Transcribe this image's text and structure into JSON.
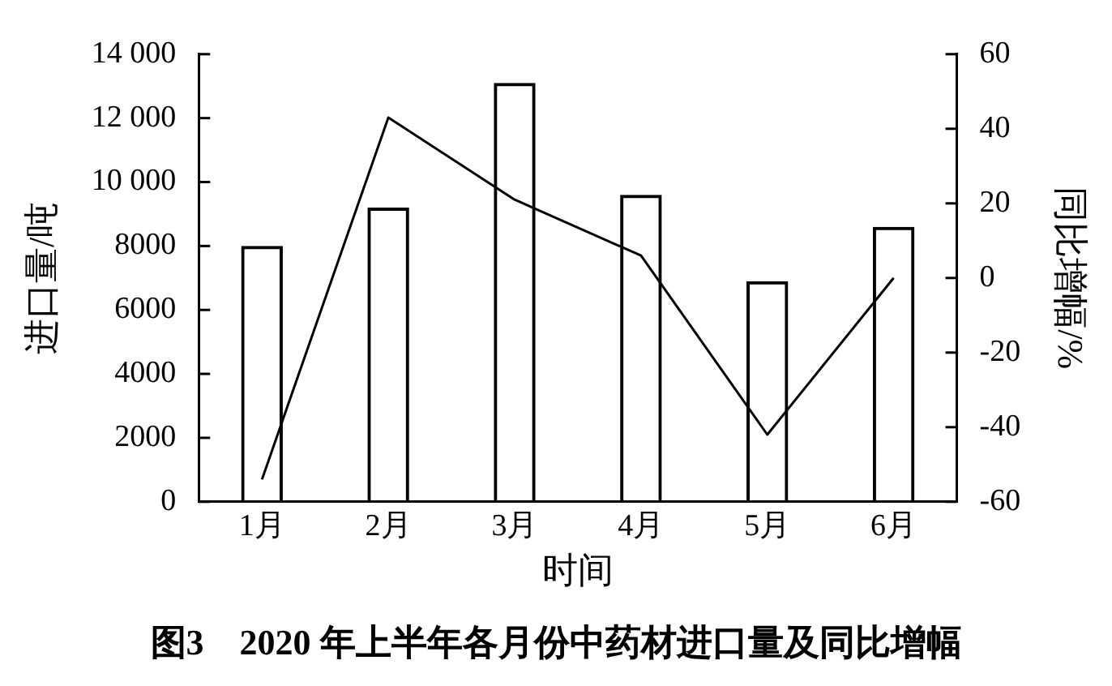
{
  "chart_data": {
    "type": "bar",
    "title": "图3　2020 年上半年各月份中药材进口量及同比增幅",
    "xlabel": "时间",
    "ylabel": "进口量/吨",
    "y2label": "同比增幅/%",
    "categories": [
      "1月",
      "2月",
      "3月",
      "4月",
      "5月",
      "6月"
    ],
    "series": [
      {
        "color": "#000000",
        "values": [
          8000,
          9200,
          13100,
          9600,
          6900,
          8600
        ]
      },
      {
        "type": "line",
        "axis": "y2",
        "color": "#000000",
        "values": [
          -54,
          43,
          21,
          6,
          -42,
          0
        ]
      }
    ],
    "ylim": [
      0,
      14000
    ],
    "yticks": [
      0,
      2000,
      4000,
      6000,
      8000,
      {
        "value": 10000,
        "label": "10 000"
      },
      {
        "value": 12000,
        "label": "12 000"
      },
      {
        "value": 14000,
        "label": "14 000"
      }
    ],
    "y2lim": [
      -60,
      60
    ],
    "y2ticks": [
      -60,
      -40,
      -20,
      0,
      20,
      40,
      60
    ],
    "grid": false,
    "legend": false,
    "marker": "none",
    "line_style": "solid"
  }
}
